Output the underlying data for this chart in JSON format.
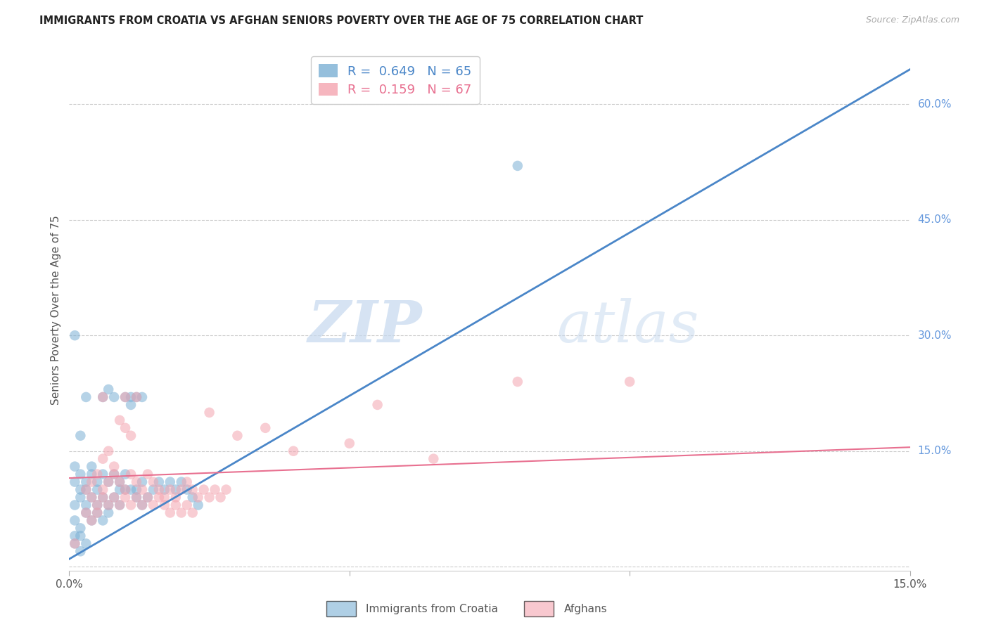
{
  "title": "IMMIGRANTS FROM CROATIA VS AFGHAN SENIORS POVERTY OVER THE AGE OF 75 CORRELATION CHART",
  "source": "Source: ZipAtlas.com",
  "ylabel": "Seniors Poverty Over the Age of 75",
  "watermark_zip": "ZIP",
  "watermark_atlas": "atlas",
  "legend": [
    {
      "label": "R =  0.649   N = 65",
      "color": "#7bafd4"
    },
    {
      "label": "R =  0.159   N = 67",
      "color": "#f4a4b0"
    }
  ],
  "croatia_color": "#7bafd4",
  "afghan_color": "#f4a4b0",
  "croatia_line_color": "#4a86c8",
  "afghan_line_color": "#e87090",
  "background": "#ffffff",
  "grid_color": "#cccccc",
  "xlim": [
    0.0,
    0.15
  ],
  "ylim": [
    -0.005,
    0.67
  ],
  "yticks": [
    0.0,
    0.15,
    0.3,
    0.45,
    0.6
  ],
  "ytick_labels": [
    "",
    "15.0%",
    "30.0%",
    "45.0%",
    "60.0%"
  ],
  "xticks": [
    0.0,
    0.05,
    0.1,
    0.15
  ],
  "xtick_labels": [
    "0.0%",
    "",
    "",
    "15.0%"
  ],
  "croatia_line_x": [
    0.0,
    0.15
  ],
  "croatia_line_y": [
    0.01,
    0.645
  ],
  "afghan_line_x": [
    0.0,
    0.15
  ],
  "afghan_line_y": [
    0.115,
    0.155
  ],
  "croatia_scatter": [
    [
      0.001,
      0.11
    ],
    [
      0.001,
      0.13
    ],
    [
      0.002,
      0.12
    ],
    [
      0.002,
      0.1
    ],
    [
      0.003,
      0.11
    ],
    [
      0.003,
      0.1
    ],
    [
      0.004,
      0.12
    ],
    [
      0.004,
      0.13
    ],
    [
      0.005,
      0.11
    ],
    [
      0.005,
      0.1
    ],
    [
      0.006,
      0.12
    ],
    [
      0.006,
      0.22
    ],
    [
      0.007,
      0.11
    ],
    [
      0.007,
      0.23
    ],
    [
      0.008,
      0.12
    ],
    [
      0.008,
      0.22
    ],
    [
      0.009,
      0.11
    ],
    [
      0.009,
      0.1
    ],
    [
      0.01,
      0.12
    ],
    [
      0.01,
      0.22
    ],
    [
      0.011,
      0.22
    ],
    [
      0.011,
      0.21
    ],
    [
      0.012,
      0.1
    ],
    [
      0.012,
      0.22
    ],
    [
      0.013,
      0.11
    ],
    [
      0.013,
      0.22
    ],
    [
      0.001,
      0.08
    ],
    [
      0.002,
      0.09
    ],
    [
      0.003,
      0.08
    ],
    [
      0.004,
      0.09
    ],
    [
      0.005,
      0.08
    ],
    [
      0.006,
      0.09
    ],
    [
      0.007,
      0.08
    ],
    [
      0.008,
      0.09
    ],
    [
      0.009,
      0.08
    ],
    [
      0.01,
      0.1
    ],
    [
      0.011,
      0.1
    ],
    [
      0.012,
      0.09
    ],
    [
      0.013,
      0.08
    ],
    [
      0.014,
      0.09
    ],
    [
      0.015,
      0.1
    ],
    [
      0.016,
      0.11
    ],
    [
      0.017,
      0.1
    ],
    [
      0.018,
      0.11
    ],
    [
      0.019,
      0.1
    ],
    [
      0.02,
      0.11
    ],
    [
      0.021,
      0.1
    ],
    [
      0.022,
      0.09
    ],
    [
      0.023,
      0.08
    ],
    [
      0.001,
      0.06
    ],
    [
      0.002,
      0.05
    ],
    [
      0.003,
      0.07
    ],
    [
      0.004,
      0.06
    ],
    [
      0.005,
      0.07
    ],
    [
      0.006,
      0.06
    ],
    [
      0.007,
      0.07
    ],
    [
      0.001,
      0.3
    ],
    [
      0.003,
      0.22
    ],
    [
      0.002,
      0.17
    ],
    [
      0.08,
      0.52
    ],
    [
      0.001,
      0.03
    ],
    [
      0.002,
      0.02
    ],
    [
      0.001,
      0.04
    ],
    [
      0.003,
      0.03
    ],
    [
      0.002,
      0.04
    ]
  ],
  "afghan_scatter": [
    [
      0.003,
      0.1
    ],
    [
      0.004,
      0.11
    ],
    [
      0.005,
      0.12
    ],
    [
      0.006,
      0.1
    ],
    [
      0.007,
      0.11
    ],
    [
      0.008,
      0.12
    ],
    [
      0.009,
      0.11
    ],
    [
      0.01,
      0.1
    ],
    [
      0.011,
      0.12
    ],
    [
      0.012,
      0.11
    ],
    [
      0.013,
      0.1
    ],
    [
      0.014,
      0.12
    ],
    [
      0.015,
      0.11
    ],
    [
      0.016,
      0.1
    ],
    [
      0.017,
      0.09
    ],
    [
      0.018,
      0.1
    ],
    [
      0.019,
      0.09
    ],
    [
      0.02,
      0.1
    ],
    [
      0.021,
      0.11
    ],
    [
      0.022,
      0.1
    ],
    [
      0.023,
      0.09
    ],
    [
      0.024,
      0.1
    ],
    [
      0.025,
      0.09
    ],
    [
      0.026,
      0.1
    ],
    [
      0.027,
      0.09
    ],
    [
      0.028,
      0.1
    ],
    [
      0.004,
      0.09
    ],
    [
      0.005,
      0.08
    ],
    [
      0.006,
      0.09
    ],
    [
      0.007,
      0.08
    ],
    [
      0.008,
      0.09
    ],
    [
      0.009,
      0.08
    ],
    [
      0.01,
      0.09
    ],
    [
      0.011,
      0.08
    ],
    [
      0.012,
      0.09
    ],
    [
      0.013,
      0.08
    ],
    [
      0.014,
      0.09
    ],
    [
      0.015,
      0.08
    ],
    [
      0.016,
      0.09
    ],
    [
      0.017,
      0.08
    ],
    [
      0.018,
      0.07
    ],
    [
      0.019,
      0.08
    ],
    [
      0.02,
      0.07
    ],
    [
      0.021,
      0.08
    ],
    [
      0.022,
      0.07
    ],
    [
      0.003,
      0.07
    ],
    [
      0.004,
      0.06
    ],
    [
      0.005,
      0.07
    ],
    [
      0.006,
      0.22
    ],
    [
      0.01,
      0.22
    ],
    [
      0.012,
      0.22
    ],
    [
      0.025,
      0.2
    ],
    [
      0.03,
      0.17
    ],
    [
      0.035,
      0.18
    ],
    [
      0.04,
      0.15
    ],
    [
      0.05,
      0.16
    ],
    [
      0.055,
      0.21
    ],
    [
      0.065,
      0.14
    ],
    [
      0.08,
      0.24
    ],
    [
      0.1,
      0.24
    ],
    [
      0.001,
      0.03
    ],
    [
      0.006,
      0.14
    ],
    [
      0.007,
      0.15
    ],
    [
      0.009,
      0.19
    ],
    [
      0.01,
      0.18
    ],
    [
      0.011,
      0.17
    ],
    [
      0.008,
      0.13
    ]
  ]
}
